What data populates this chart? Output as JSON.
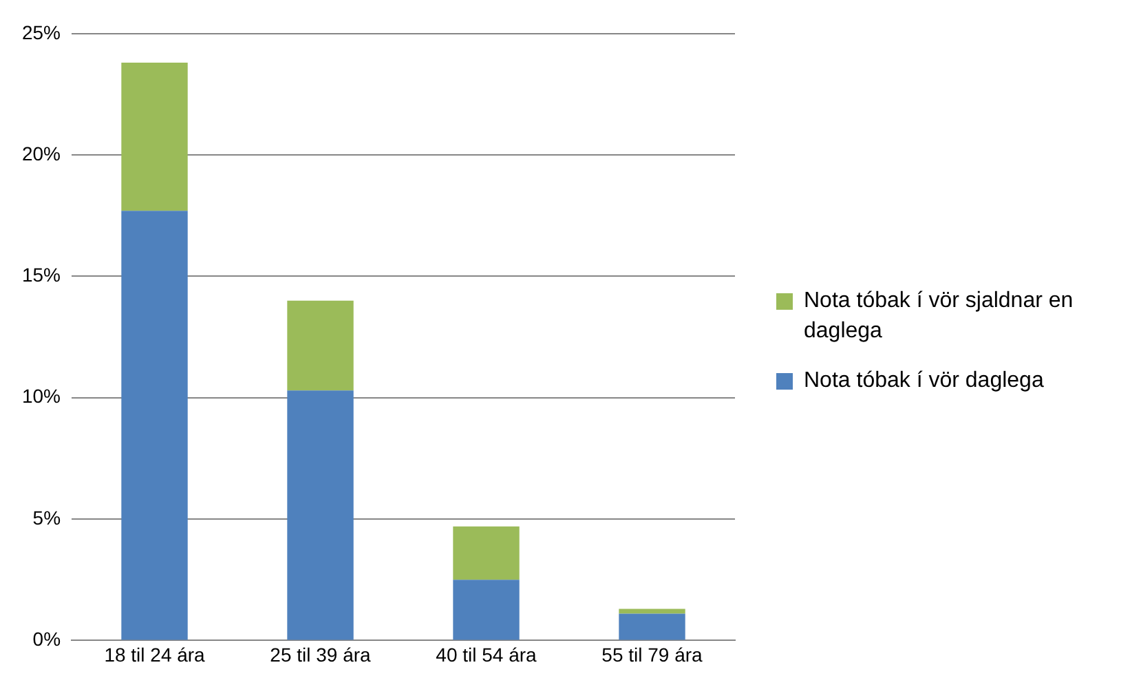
{
  "chart_data": {
    "type": "bar",
    "stacked": true,
    "categories": [
      "18 til 24 ára",
      "25 til 39 ára",
      "40 til 54 ára",
      "55 til 79 ára"
    ],
    "series": [
      {
        "name": "Nota tóbak í vör daglega",
        "color": "#4f81bd",
        "values": [
          17.7,
          10.3,
          2.5,
          1.1
        ]
      },
      {
        "name": "Nota tóbak í vör sjaldnar en daglega",
        "color": "#9bbb59",
        "values": [
          6.1,
          3.7,
          2.2,
          0.2
        ]
      }
    ],
    "ylim": [
      0,
      25
    ],
    "yticks": [
      {
        "value": 0,
        "label": "0%"
      },
      {
        "value": 5,
        "label": "5%"
      },
      {
        "value": 10,
        "label": "10%"
      },
      {
        "value": 15,
        "label": "15%"
      },
      {
        "value": 20,
        "label": "20%"
      },
      {
        "value": 25,
        "label": "25%"
      }
    ],
    "grid": "y",
    "legend": "right"
  }
}
